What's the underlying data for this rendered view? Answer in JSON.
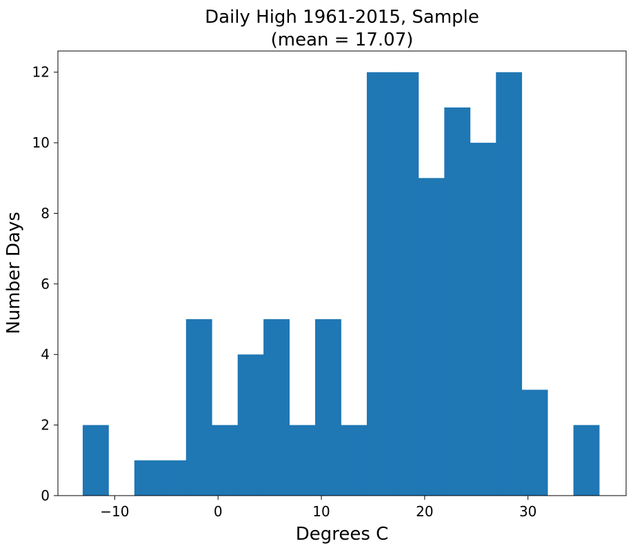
{
  "chart_data": {
    "type": "bar",
    "title_lines": [
      "Daily High 1961-2015, Sample",
      "(mean = 17.07)"
    ],
    "xlabel": "Degrees C",
    "ylabel": "Number Days",
    "xlim": [
      -15.5,
      39.5
    ],
    "ylim": [
      0,
      12.6
    ],
    "xticks": [
      -10,
      0,
      10,
      20,
      30
    ],
    "xtick_labels": [
      "−10",
      "0",
      "10",
      "20",
      "30"
    ],
    "yticks": [
      0,
      2,
      4,
      6,
      8,
      10,
      12
    ],
    "ytick_labels": [
      "0",
      "2",
      "4",
      "6",
      "8",
      "10",
      "12"
    ],
    "bin_edges": [
      -13.1,
      -10.6,
      -8.1,
      -5.6,
      -3.1,
      -0.6,
      1.9,
      4.4,
      6.9,
      9.4,
      11.9,
      14.4,
      16.9,
      19.4,
      21.9,
      24.4,
      26.9,
      29.4,
      31.9,
      34.4,
      36.9
    ],
    "values": [
      2,
      0,
      1,
      1,
      5,
      2,
      4,
      5,
      2,
      5,
      2,
      12,
      12,
      9,
      11,
      10,
      12,
      3,
      0,
      2
    ],
    "bar_color": "#1f77b4",
    "grid": false,
    "legend": "none"
  }
}
